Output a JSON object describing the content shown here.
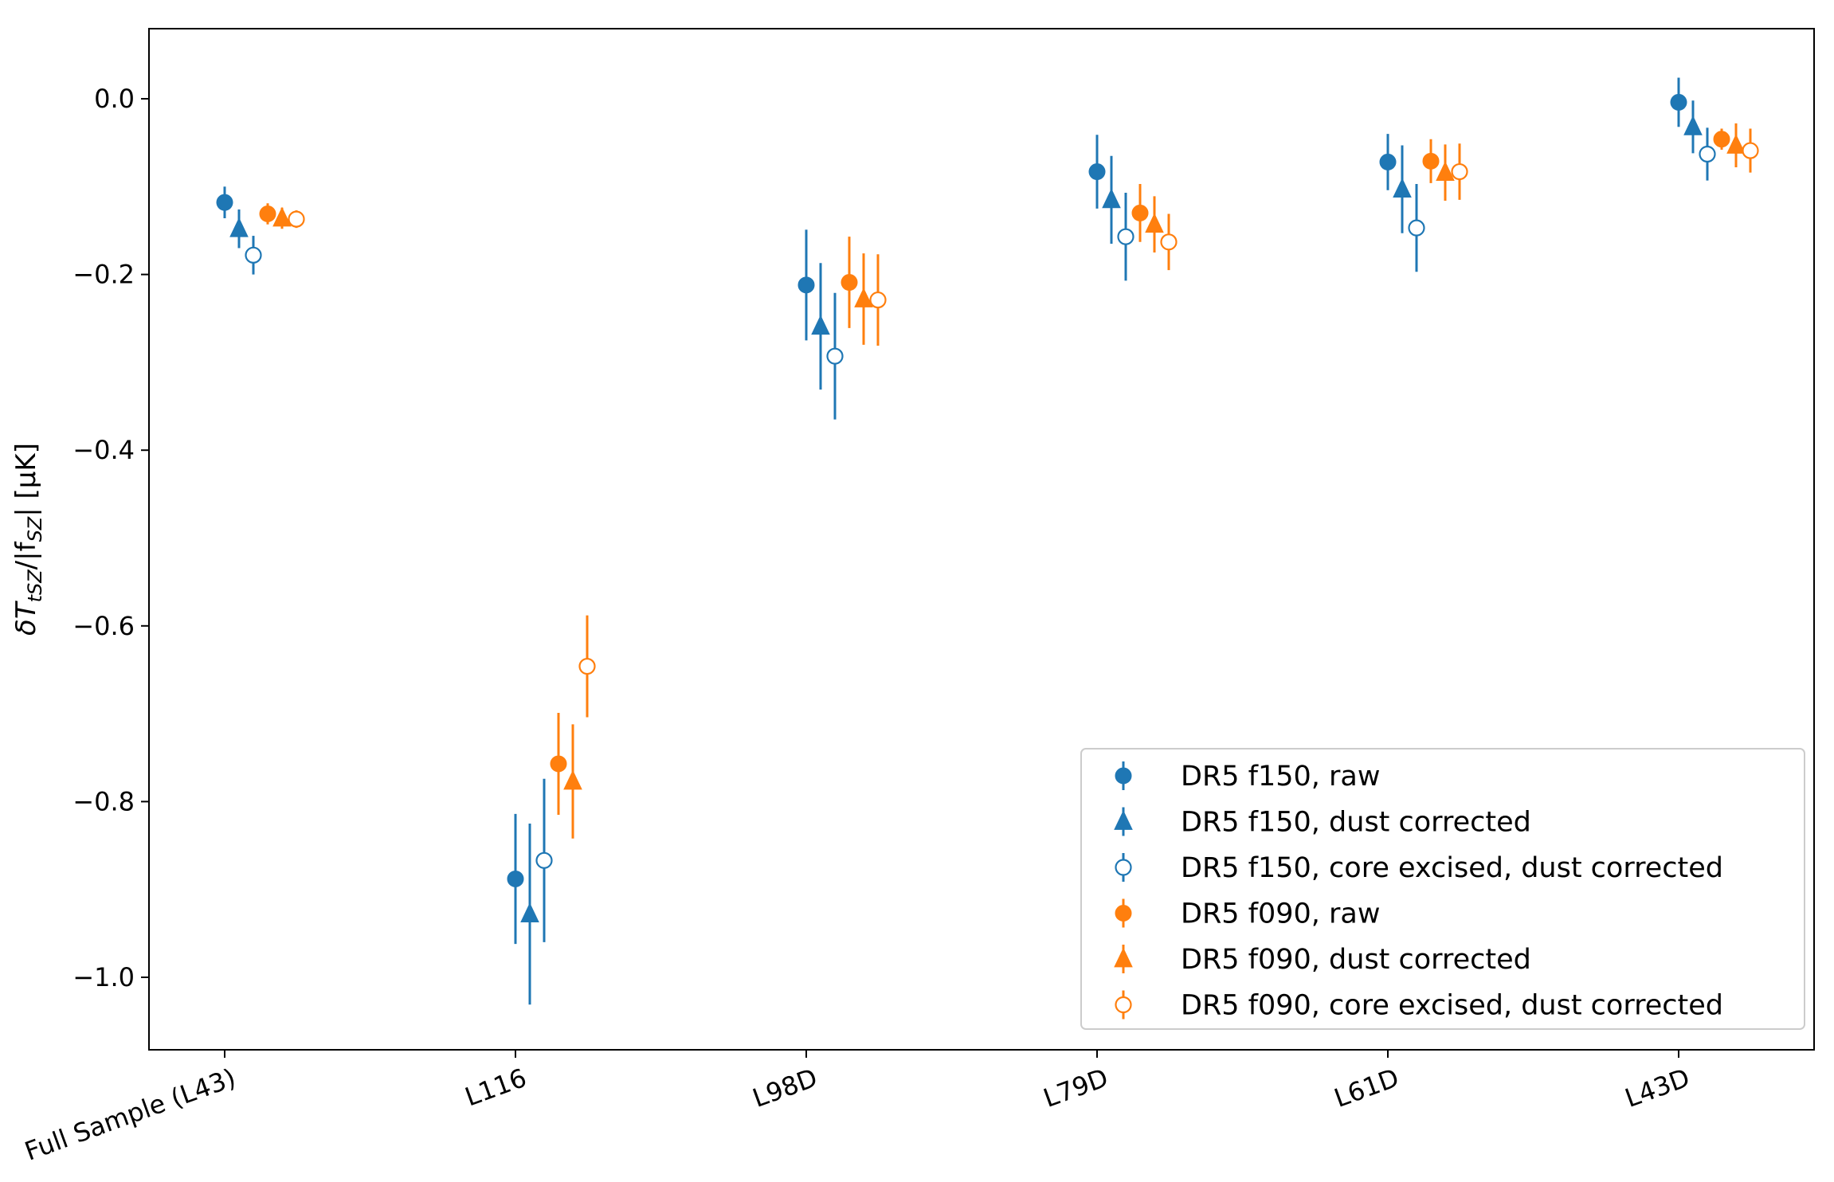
{
  "chart_data": {
    "type": "scatter",
    "title": "",
    "xlabel": "",
    "ylabel_parts": [
      {
        "t": "δT"
      },
      {
        "t": "tSZ",
        "sub": true
      },
      {
        "t": "/|f"
      },
      {
        "t": "SZ",
        "sub": true
      },
      {
        "t": "| [μK]"
      }
    ],
    "categories": [
      "Full Sample (L43)",
      "L116",
      "L98D",
      "L79D",
      "L61D",
      "L43D"
    ],
    "yticks": [
      0.0,
      -0.2,
      -0.4,
      -0.6,
      -0.8,
      -1.0
    ],
    "ytick_labels": [
      "0.0",
      "−0.2",
      "−0.4",
      "−0.6",
      "−0.8",
      "−1.0"
    ],
    "ylim": [
      -1.085,
      0.078
    ],
    "legend_position": "lower-right",
    "series": [
      {
        "name": "DR5 f150, raw",
        "color": "#1f77b4",
        "marker": "circle",
        "filled": true,
        "values": [
          -0.118,
          -0.888,
          -0.212,
          -0.083,
          -0.072,
          -0.004
        ],
        "errors": [
          0.018,
          0.074,
          0.063,
          0.042,
          0.032,
          0.028
        ]
      },
      {
        "name": "DR5 f150, dust corrected",
        "color": "#1f77b4",
        "marker": "triangle",
        "filled": true,
        "values": [
          -0.148,
          -0.928,
          -0.259,
          -0.115,
          -0.103,
          -0.032
        ],
        "errors": [
          0.022,
          0.103,
          0.072,
          0.05,
          0.05,
          0.03
        ]
      },
      {
        "name": "DR5 f150, core excised, dust corrected",
        "color": "#1f77b4",
        "marker": "circle",
        "filled": false,
        "values": [
          -0.178,
          -0.867,
          -0.293,
          -0.157,
          -0.147,
          -0.063
        ],
        "errors": [
          0.022,
          0.093,
          0.072,
          0.05,
          0.05,
          0.03
        ]
      },
      {
        "name": "DR5 f090, raw",
        "color": "#ff7f0e",
        "marker": "circle",
        "filled": true,
        "values": [
          -0.131,
          -0.757,
          -0.209,
          -0.13,
          -0.071,
          -0.046
        ],
        "errors": [
          0.012,
          0.058,
          0.052,
          0.033,
          0.025,
          0.012
        ]
      },
      {
        "name": "DR5 f090, dust corrected",
        "color": "#ff7f0e",
        "marker": "triangle",
        "filled": true,
        "values": [
          -0.136,
          -0.777,
          -0.228,
          -0.143,
          -0.084,
          -0.053
        ],
        "errors": [
          0.012,
          0.065,
          0.052,
          0.032,
          0.032,
          0.025
        ]
      },
      {
        "name": "DR5 f090, core excised, dust corrected",
        "color": "#ff7f0e",
        "marker": "circle",
        "filled": false,
        "values": [
          -0.137,
          -0.646,
          -0.229,
          -0.163,
          -0.083,
          -0.059
        ],
        "errors": [
          0.01,
          0.058,
          0.052,
          0.032,
          0.032,
          0.025
        ]
      }
    ]
  }
}
